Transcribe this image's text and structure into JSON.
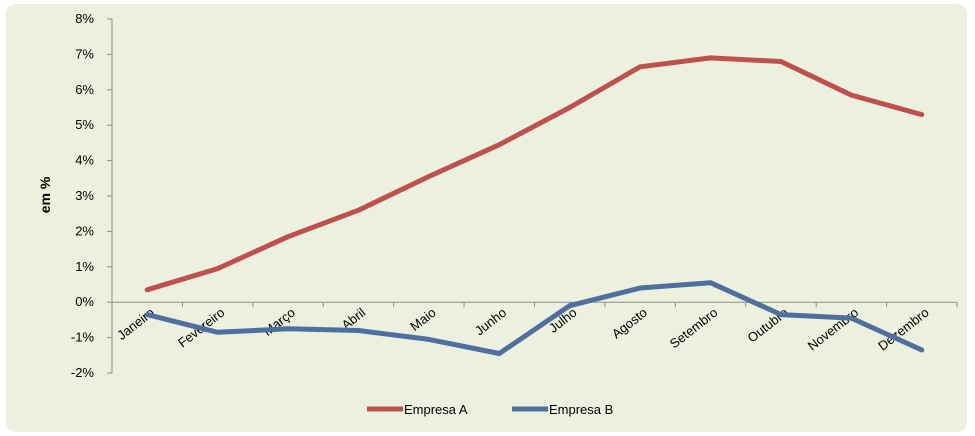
{
  "chart_data": {
    "type": "line",
    "title": "",
    "xlabel": "",
    "ylabel": "em %",
    "categories": [
      "Janeiro",
      "Fevereiro",
      "Março",
      "Abril",
      "Maio",
      "Junho",
      "Julho",
      "Agosto",
      "Setembro",
      "Outubro",
      "Novembro",
      "Dezembro"
    ],
    "ylim": [
      -2,
      8
    ],
    "yticks": [
      "-2%",
      "-1%",
      "0%",
      "1%",
      "2%",
      "3%",
      "4%",
      "5%",
      "6%",
      "7%",
      "8%"
    ],
    "series": [
      {
        "name": "Empresa A",
        "color": "#c0504d",
        "values": [
          0.35,
          0.95,
          1.85,
          2.6,
          3.55,
          4.45,
          5.5,
          6.65,
          6.9,
          6.8,
          5.85,
          5.3
        ]
      },
      {
        "name": "Empresa B",
        "color": "#4f6f9f",
        "values": [
          -0.35,
          -0.85,
          -0.75,
          -0.8,
          -1.05,
          -1.45,
          -0.1,
          0.4,
          0.55,
          -0.35,
          -0.45,
          -1.35
        ]
      }
    ],
    "grid": false,
    "legend": "bottom-center"
  }
}
